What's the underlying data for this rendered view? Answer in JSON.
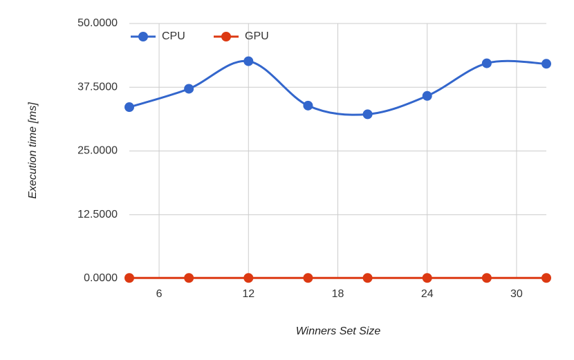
{
  "chart_data": {
    "type": "line",
    "smooth": true,
    "grid": true,
    "legend": "top-left",
    "x_label": "Winners Set Size",
    "y_label": "Execution time [ms]",
    "x": [
      4,
      8,
      12,
      16,
      20,
      24,
      28,
      32
    ],
    "series": [
      {
        "name": "CPU",
        "color": "#3366cc",
        "values": [
          33.6,
          37.2,
          42.6,
          33.9,
          32.2,
          35.8,
          42.2,
          42.1
        ]
      },
      {
        "name": "GPU",
        "color": "#dc3912",
        "values": [
          0.1,
          0.1,
          0.1,
          0.1,
          0.1,
          0.1,
          0.1,
          0.1
        ]
      }
    ],
    "xlim": [
      4,
      32
    ],
    "xticks": [
      6,
      12,
      18,
      24,
      30
    ],
    "ylim": [
      0,
      50
    ],
    "yticks": [
      {
        "value": 0,
        "label": "0.0000"
      },
      {
        "value": 12.5,
        "label": "12.5000"
      },
      {
        "value": 25,
        "label": "25.0000"
      },
      {
        "value": 37.5,
        "label": "37.5000"
      },
      {
        "value": 50,
        "label": "50.0000"
      }
    ]
  }
}
